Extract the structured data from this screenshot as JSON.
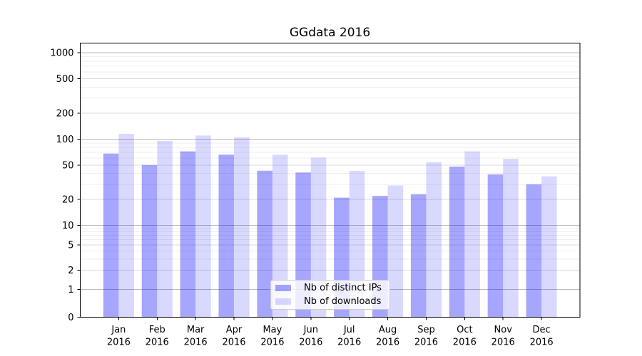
{
  "chart_data": {
    "type": "bar",
    "title": "GGdata 2016",
    "categories": [
      "Jan",
      "Feb",
      "Mar",
      "Apr",
      "May",
      "Jun",
      "Jul",
      "Aug",
      "Sep",
      "Oct",
      "Nov",
      "Dec"
    ],
    "category_year": "2016",
    "series": [
      {
        "name": "Nb of distinct IPs",
        "color": "rgba(0,0,255,0.35)",
        "values": [
          68,
          50,
          72,
          66,
          43,
          41,
          21,
          22,
          23,
          48,
          39,
          30
        ]
      },
      {
        "name": "Nb of downloads",
        "color": "rgba(0,0,255,0.15)",
        "values": [
          115,
          95,
          110,
          105,
          66,
          61,
          43,
          29,
          54,
          72,
          59,
          37
        ]
      }
    ],
    "yscale": "symlog",
    "y_tick_labels": [
      1000,
      500,
      200,
      100,
      50,
      20,
      10,
      5,
      2,
      1,
      0
    ],
    "y_decade_grid": [
      1,
      10,
      100,
      1000
    ],
    "y_mid_grid": [
      2,
      5,
      20,
      50,
      200,
      500
    ],
    "y_minor_grid": [
      3,
      4,
      6,
      7,
      8,
      9,
      30,
      40,
      60,
      70,
      80,
      90,
      300,
      400,
      600,
      700,
      800,
      900
    ],
    "ylim": [
      0,
      1400
    ],
    "grid": true,
    "legend": {
      "position": "lower center",
      "entries": [
        "Nb of distinct IPs",
        "Nb of downloads"
      ]
    }
  },
  "colors": {
    "bar_ips": "rgba(0,0,255,0.35)",
    "bar_downloads": "rgba(0,0,255,0.15)",
    "grid_decade": "#bbbbbb",
    "grid_mid": "#dddddd",
    "grid_minor": "#efefef",
    "axis": "#000000",
    "text": "#000000",
    "legend_border": "#cccccc"
  }
}
